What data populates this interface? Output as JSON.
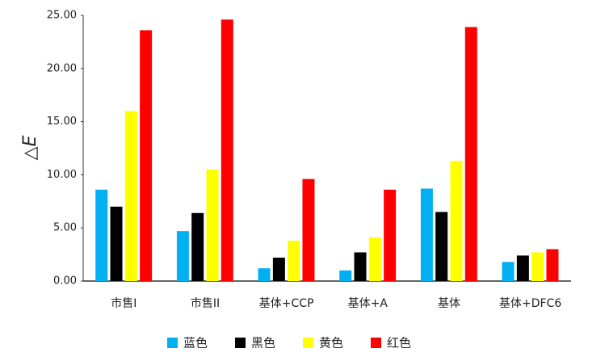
{
  "chart_data": {
    "type": "bar",
    "y_label": "△E",
    "categories": [
      "市售I",
      "市售II",
      "基体+CCP",
      "基体+A",
      "基体",
      "基体+DFC6"
    ],
    "series": [
      {
        "name": "蓝色",
        "color": "#00b0f0",
        "values": [
          8.6,
          4.7,
          1.2,
          1.0,
          8.7,
          1.8
        ]
      },
      {
        "name": "黑色",
        "color": "#000000",
        "values": [
          7.0,
          6.4,
          2.2,
          2.7,
          6.5,
          2.4
        ]
      },
      {
        "name": "黄色",
        "color": "#ffff00",
        "values": [
          16.0,
          10.5,
          3.8,
          4.1,
          11.3,
          2.7
        ]
      },
      {
        "name": "红色",
        "color": "#ff0000",
        "values": [
          23.6,
          24.6,
          9.6,
          8.6,
          23.9,
          3.0
        ]
      }
    ],
    "ylim": [
      0,
      25
    ],
    "yticks": [
      {
        "value": 0,
        "label": "0.00"
      },
      {
        "value": 5,
        "label": "5.00"
      },
      {
        "value": 10,
        "label": "10.00"
      },
      {
        "value": 15,
        "label": "15.00"
      },
      {
        "value": 20,
        "label": "20.00"
      },
      {
        "value": 25,
        "label": "25.00"
      }
    ],
    "legend": "bottom"
  }
}
